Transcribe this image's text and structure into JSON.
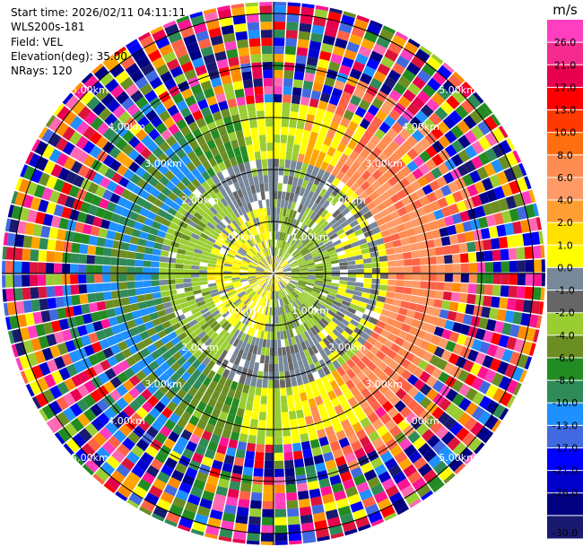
{
  "header": {
    "start_time": "Start time: 2026/02/11 04:11:11",
    "station": "WLS200s-181",
    "field": "Field: VEL",
    "elevation": "Elevation(deg): 35.00",
    "nrays": "NRays: 120"
  },
  "scan": {
    "max_range_km": 5.2,
    "ring_labels": [
      "1.00km",
      "2.00km",
      "3.00km",
      "4.00km",
      "5.00km"
    ],
    "spoke_count": 12
  },
  "colorbar": {
    "unit": "m/s",
    "ticks": [
      "26.0",
      "21.0",
      "17.0",
      "13.0",
      "10.0",
      "8.0",
      "6.0",
      "4.0",
      "2.0",
      "1.0",
      "0.0",
      "-1.0",
      "-2.0",
      "-4.0",
      "-6.0",
      "-8.0",
      "-10.0",
      "-13.0",
      "-17.0",
      "-21.0",
      "-26.0",
      "-30.0"
    ],
    "colors": [
      "#ff3fbf",
      "#f52a8f",
      "#e8004f",
      "#ff0000",
      "#ff3a00",
      "#ff6f10",
      "#ff8c50",
      "#ff9a66",
      "#ff9f33",
      "#ffe000",
      "#ffff00",
      "#778899",
      "#666666",
      "#9acd32",
      "#6b8e23",
      "#228b22",
      "#2e8b57",
      "#1e90ff",
      "#4169e1",
      "#0000ff",
      "#0000cd",
      "#000080",
      "#191970"
    ]
  }
}
